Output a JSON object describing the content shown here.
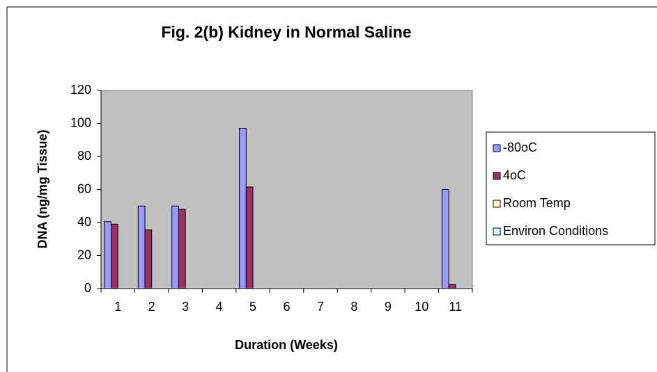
{
  "chart_data": {
    "type": "bar",
    "title": "Fig. 2(b) Kidney in Normal Saline",
    "x_label": "Duration (Weeks)",
    "y_label": "DNA (ng/mg Tissue)",
    "categories": [
      "1",
      "2",
      "3",
      "4",
      "5",
      "6",
      "7",
      "8",
      "9",
      "10",
      "11"
    ],
    "series": [
      {
        "name": "-80oC",
        "color": "#9999ff",
        "values": [
          40.5,
          50,
          50,
          null,
          97,
          null,
          null,
          null,
          null,
          null,
          60
        ]
      },
      {
        "name": "4oC",
        "color": "#993366",
        "values": [
          39,
          35.5,
          48,
          null,
          61.5,
          null,
          null,
          null,
          null,
          null,
          2.5
        ]
      },
      {
        "name": "Room Temp",
        "color": "#ffffcc",
        "values": [
          null,
          null,
          null,
          null,
          null,
          null,
          null,
          null,
          null,
          null,
          null
        ]
      },
      {
        "name": "Environ Conditions",
        "color": "#ccffff",
        "values": [
          null,
          null,
          null,
          null,
          null,
          null,
          null,
          null,
          null,
          null,
          null
        ]
      }
    ],
    "ylim": [
      0,
      120
    ],
    "yticks": [
      0,
      20,
      40,
      60,
      80,
      100,
      120
    ],
    "legend": "right"
  }
}
